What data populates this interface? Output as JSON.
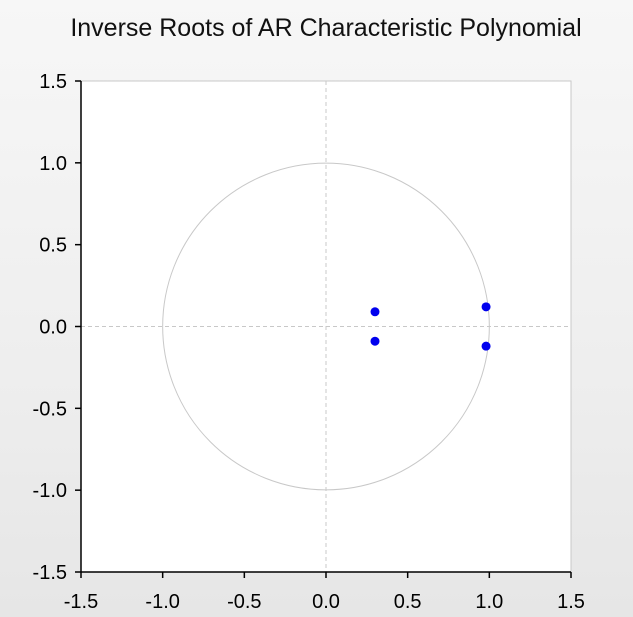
{
  "chart_data": {
    "type": "scatter",
    "title": "Inverse Roots of AR Characteristic Polynomial",
    "xlabel": "",
    "ylabel": "",
    "xlim": [
      -1.5,
      1.5
    ],
    "ylim": [
      -1.5,
      1.5
    ],
    "x_ticks": [
      "-1.5",
      "-1.0",
      "-0.5",
      "0.0",
      "0.5",
      "1.0",
      "1.5"
    ],
    "y_ticks": [
      "1.5",
      "1.0",
      "0.5",
      "0.0",
      "-0.5",
      "-1.0",
      "-1.5"
    ],
    "unit_circle_radius": 1.0,
    "reference_lines": {
      "x": 0,
      "y": 0,
      "style": "dashed"
    },
    "grid": false,
    "series": [
      {
        "points": [
          {
            "x": 0.3,
            "y": 0.09
          },
          {
            "x": 0.3,
            "y": -0.09
          },
          {
            "x": 0.98,
            "y": 0.12
          },
          {
            "x": 0.98,
            "y": -0.12
          }
        ]
      }
    ],
    "colors": {
      "points": "#0000ee",
      "circle": "#c8c8c8",
      "reference_lines": "#c8c8c8",
      "axis": "#000000",
      "plot_background": "#ffffff"
    }
  }
}
